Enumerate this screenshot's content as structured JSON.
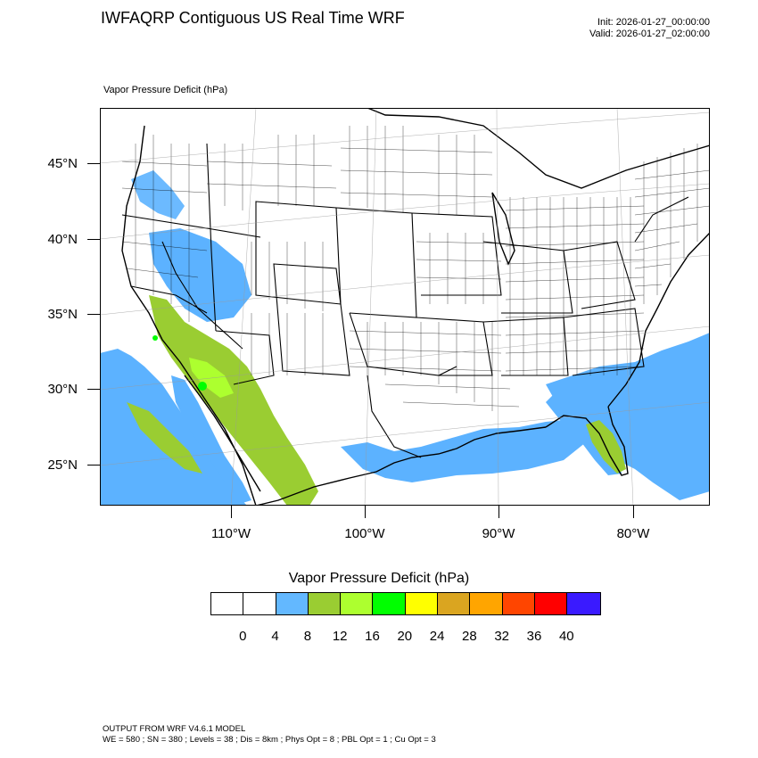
{
  "header": {
    "title": "IWFAQRP Contiguous US Real Time WRF",
    "init": "Init: 2026-01-27_00:00:00",
    "valid": "Valid: 2026-01-27_02:00:00"
  },
  "field_label": "Vapor Pressure Deficit   (hPa)",
  "map": {
    "lat_labels": [
      "45°N",
      "40°N",
      "35°N",
      "30°N",
      "25°N"
    ],
    "lon_labels": [
      "110°W",
      "100°W",
      "90°W",
      "80°W"
    ],
    "colors": {
      "ocean_high_vpd": "#5cb2ff",
      "green_light": "#9acd32",
      "green_lime": "#adff2f",
      "green_bright": "#00ff00",
      "land": "#ffffff",
      "borders": "#000000"
    }
  },
  "colorbar": {
    "title": "Vapor Pressure Deficit  (hPa)",
    "labels": [
      "0",
      "4",
      "8",
      "12",
      "16",
      "20",
      "24",
      "28",
      "32",
      "36",
      "40"
    ],
    "colors": [
      "#ffffff",
      "#ffffff",
      "#63b8ff",
      "#9acd32",
      "#adff2f",
      "#00ff00",
      "#ffff00",
      "#daa520",
      "#ffa500",
      "#ff4500",
      "#ff0000",
      "#3a1aff"
    ]
  },
  "footer": {
    "line1": "OUTPUT FROM WRF V4.6.1 MODEL",
    "line2": "WE = 580 ; SN = 380 ; Levels = 38 ; Dis = 8km ; Phys Opt = 8 ; PBL Opt = 1 ; Cu Opt = 3"
  }
}
